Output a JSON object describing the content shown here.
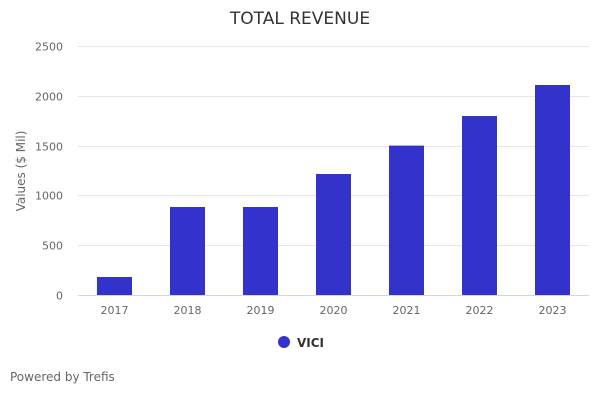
{
  "chart_data": {
    "type": "bar",
    "title": "TOTAL REVENUE",
    "xlabel": "",
    "ylabel": "Values ($ Mil)",
    "ylim": [
      0,
      2500
    ],
    "yticks": [
      0,
      500,
      1000,
      1500,
      2000,
      2500
    ],
    "ytick_labels": [
      "0",
      "500",
      "1000",
      "1500",
      "2000",
      "2500"
    ],
    "grid": true,
    "categories": [
      "2017",
      "2018",
      "2019",
      "2020",
      "2021",
      "2022",
      "2023"
    ],
    "series": [
      {
        "name": "VICI",
        "color": "#3333cc",
        "values": [
          181,
          884,
          884,
          1215,
          1500,
          1797,
          2108
        ]
      }
    ],
    "legend": {
      "position": "bottom-center"
    }
  },
  "credits": "Powered by Trefis"
}
